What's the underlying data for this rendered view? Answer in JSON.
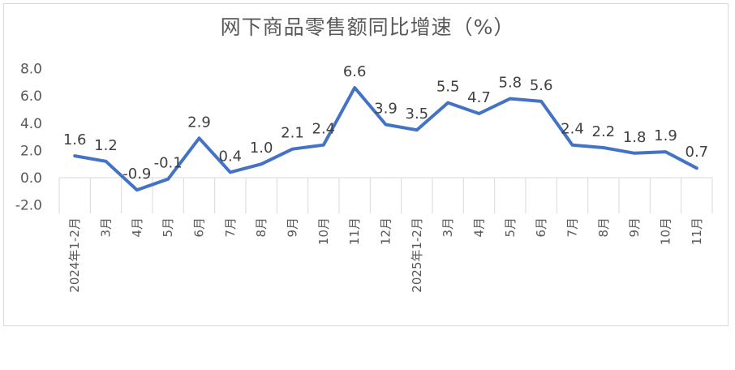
{
  "chart_data": {
    "type": "line",
    "title": "网下商品零售额同比增速（%）",
    "xlabel": "",
    "ylabel": "",
    "ylim": [
      -2.0,
      8.0
    ],
    "yticks": [
      "8.0",
      "6.0",
      "4.0",
      "2.0",
      "0.0",
      "-2.0"
    ],
    "ytick_values": [
      8,
      6,
      4,
      2,
      0,
      -2
    ],
    "grid": false,
    "legend": "none",
    "categories": [
      "2024年1-2月",
      "3月",
      "4月",
      "5月",
      "6月",
      "7月",
      "8月",
      "9月",
      "10月",
      "11月",
      "12月",
      "2025年1-2月",
      "3月",
      "4月",
      "5月",
      "6月",
      "7月",
      "8月",
      "9月",
      "10月",
      "11月"
    ],
    "series": [
      {
        "color": "#4472c4",
        "values": [
          1.6,
          1.2,
          -0.9,
          -0.1,
          2.9,
          0.4,
          1.0,
          2.1,
          2.4,
          6.6,
          3.9,
          3.5,
          5.5,
          4.7,
          5.8,
          5.6,
          2.4,
          2.2,
          1.8,
          1.9,
          0.7
        ],
        "labels": [
          "1.6",
          "1.2",
          "-0.9",
          "-0.1",
          "2.9",
          "0.4",
          "1.0",
          "2.1",
          "2.4",
          "6.6",
          "3.9",
          "3.5",
          "5.5",
          "4.7",
          "5.8",
          "5.6",
          "2.4",
          "2.2",
          "1.8",
          "1.9",
          "0.7"
        ]
      }
    ]
  }
}
